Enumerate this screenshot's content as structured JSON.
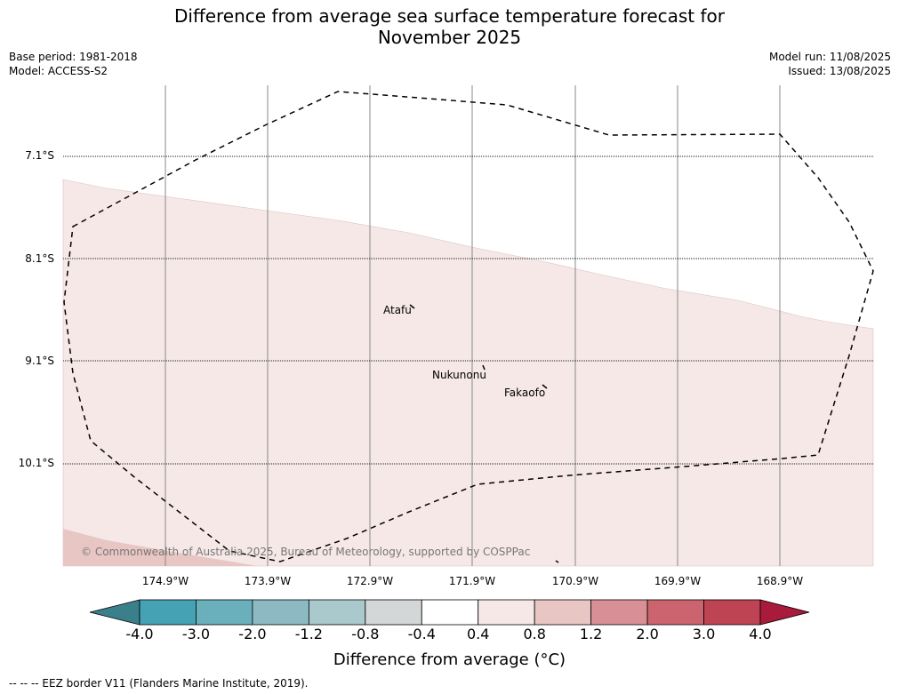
{
  "title_line1": "Difference from average sea surface temperature forecast for",
  "title_line2": "November 2025",
  "base_period": "Base period: 1981-2018",
  "model": "Model: ACCESS-S2",
  "model_run": "Model run: 11/08/2025",
  "issued": "Issued: 13/08/2025",
  "lat_labels": [
    "7.1°S",
    "8.1°S",
    "9.1°S",
    "10.1°S"
  ],
  "lon_labels": [
    "174.9°W",
    "173.9°W",
    "172.9°W",
    "171.9°W",
    "170.9°W",
    "169.9°W",
    "168.9°W"
  ],
  "places": {
    "atafu": "Atafu",
    "nukunonu": "Nukunonu",
    "fakaofo": "Fakaofo"
  },
  "copyright": "© Commonwealth of Australia 2025, Bureau of Meteorology, supported by COSPPac",
  "colorbar": {
    "ticks": [
      "-4.0",
      "-3.0",
      "-2.0",
      "-1.2",
      "-0.8",
      "-0.4",
      "0.4",
      "0.8",
      "1.2",
      "2.0",
      "3.0",
      "4.0"
    ],
    "colors": [
      "#3a7f8a",
      "#45a2b4",
      "#6aafbc",
      "#8dbac2",
      "#a9c9cc",
      "#d3d7d7",
      "#ffffff",
      "#f5e8e7",
      "#e8c6c3",
      "#d88f96",
      "#cc6470",
      "#be4453",
      "#a91b3a"
    ],
    "title": "Difference from average (°C)"
  },
  "footer": "--  --  -- EEZ border V11 (Flanders Marine Institute, 2019).",
  "map_colors": {
    "anomaly_0_4_0_8": "#f5e8e7",
    "anomaly_0_8_1_2": "#e8c6c3"
  }
}
